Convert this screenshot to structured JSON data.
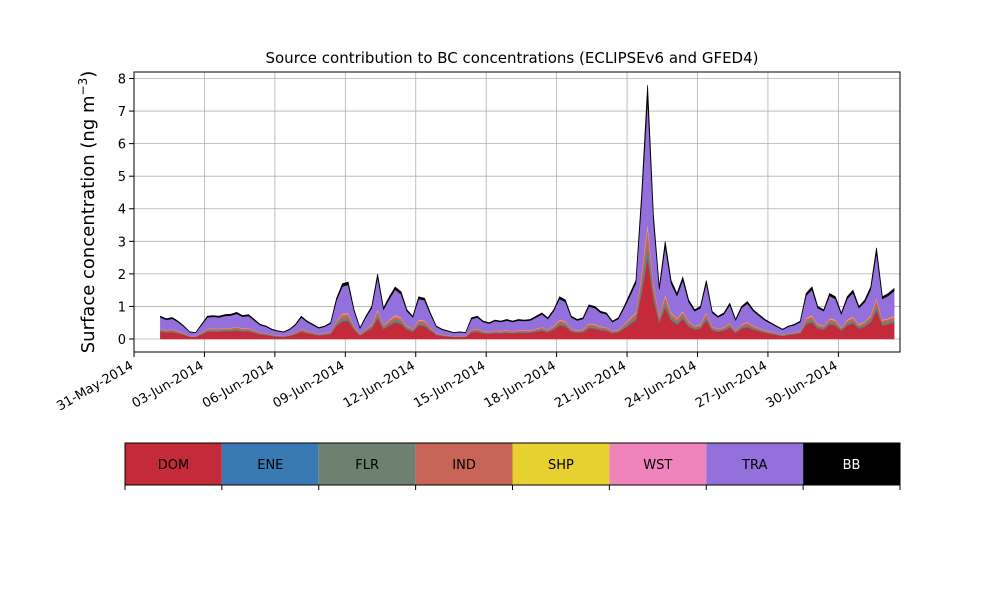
{
  "chart_data": {
    "type": "area",
    "title": "Source contribution to BC concentrations (ECLIPSEv6 and GFED4)",
    "ylabel_main": "Surface concentration (ng m",
    "ylabel_sup": "−3",
    "ylabel_close": ")",
    "xlabel": "",
    "x_start": "2014-05-31",
    "xlim": [
      "2014-05-31T00:00",
      "2014-07-02T15:00"
    ],
    "ylim": [
      -0.4,
      8.2
    ],
    "grid": true,
    "x_tick_dates": [
      "2014-05-31",
      "2014-06-03",
      "2014-06-06",
      "2014-06-09",
      "2014-06-12",
      "2014-06-15",
      "2014-06-18",
      "2014-06-21",
      "2014-06-24",
      "2014-06-27",
      "2014-06-30"
    ],
    "x_tick_labels": [
      "31-May-2014",
      "03-Jun-2014",
      "06-Jun-2014",
      "09-Jun-2014",
      "12-Jun-2014",
      "15-Jun-2014",
      "18-Jun-2014",
      "21-Jun-2014",
      "24-Jun-2014",
      "27-Jun-2014",
      "30-Jun-2014"
    ],
    "y_ticks": [
      0,
      1,
      2,
      3,
      4,
      5,
      6,
      7,
      8
    ],
    "y_tick_labels": [
      "0",
      "1",
      "2",
      "3",
      "4",
      "5",
      "6",
      "7",
      "8"
    ],
    "total_points": [
      [
        "2014-06-01T03:00",
        0.7
      ],
      [
        "2014-06-01T09:00",
        0.62
      ],
      [
        "2014-06-01T15:00",
        0.66
      ],
      [
        "2014-06-01T21:00",
        0.55
      ],
      [
        "2014-06-02T03:00",
        0.4
      ],
      [
        "2014-06-02T09:00",
        0.22
      ],
      [
        "2014-06-02T15:00",
        0.2
      ],
      [
        "2014-06-02T21:00",
        0.45
      ],
      [
        "2014-06-03T03:00",
        0.7
      ],
      [
        "2014-06-03T09:00",
        0.72
      ],
      [
        "2014-06-03T15:00",
        0.7
      ],
      [
        "2014-06-03T21:00",
        0.75
      ],
      [
        "2014-06-04T03:00",
        0.76
      ],
      [
        "2014-06-04T09:00",
        0.82
      ],
      [
        "2014-06-04T15:00",
        0.72
      ],
      [
        "2014-06-04T21:00",
        0.75
      ],
      [
        "2014-06-05T03:00",
        0.6
      ],
      [
        "2014-06-05T09:00",
        0.45
      ],
      [
        "2014-06-05T15:00",
        0.4
      ],
      [
        "2014-06-05T21:00",
        0.3
      ],
      [
        "2014-06-06T03:00",
        0.25
      ],
      [
        "2014-06-06T09:00",
        0.22
      ],
      [
        "2014-06-06T15:00",
        0.3
      ],
      [
        "2014-06-06T21:00",
        0.45
      ],
      [
        "2014-06-07T03:00",
        0.7
      ],
      [
        "2014-06-07T09:00",
        0.55
      ],
      [
        "2014-06-07T15:00",
        0.45
      ],
      [
        "2014-06-07T21:00",
        0.35
      ],
      [
        "2014-06-08T03:00",
        0.4
      ],
      [
        "2014-06-08T09:00",
        0.5
      ],
      [
        "2014-06-08T15:00",
        1.25
      ],
      [
        "2014-06-08T21:00",
        1.7
      ],
      [
        "2014-06-09T03:00",
        1.75
      ],
      [
        "2014-06-09T09:00",
        0.9
      ],
      [
        "2014-06-09T15:00",
        0.35
      ],
      [
        "2014-06-09T21:00",
        0.7
      ],
      [
        "2014-06-10T03:00",
        1.0
      ],
      [
        "2014-06-10T09:00",
        2.0
      ],
      [
        "2014-06-10T15:00",
        0.95
      ],
      [
        "2014-06-10T21:00",
        1.3
      ],
      [
        "2014-06-11T03:00",
        1.6
      ],
      [
        "2014-06-11T09:00",
        1.45
      ],
      [
        "2014-06-11T15:00",
        0.9
      ],
      [
        "2014-06-11T21:00",
        0.7
      ],
      [
        "2014-06-12T03:00",
        1.3
      ],
      [
        "2014-06-12T09:00",
        1.25
      ],
      [
        "2014-06-12T15:00",
        0.8
      ],
      [
        "2014-06-12T21:00",
        0.4
      ],
      [
        "2014-06-13T03:00",
        0.3
      ],
      [
        "2014-06-13T09:00",
        0.25
      ],
      [
        "2014-06-13T15:00",
        0.2
      ],
      [
        "2014-06-13T21:00",
        0.22
      ],
      [
        "2014-06-14T03:00",
        0.2
      ],
      [
        "2014-06-14T09:00",
        0.65
      ],
      [
        "2014-06-14T15:00",
        0.7
      ],
      [
        "2014-06-14T21:00",
        0.55
      ],
      [
        "2014-06-15T03:00",
        0.5
      ],
      [
        "2014-06-15T09:00",
        0.58
      ],
      [
        "2014-06-15T15:00",
        0.55
      ],
      [
        "2014-06-15T21:00",
        0.6
      ],
      [
        "2014-06-16T03:00",
        0.55
      ],
      [
        "2014-06-16T09:00",
        0.6
      ],
      [
        "2014-06-16T15:00",
        0.58
      ],
      [
        "2014-06-16T21:00",
        0.6
      ],
      [
        "2014-06-17T03:00",
        0.7
      ],
      [
        "2014-06-17T09:00",
        0.8
      ],
      [
        "2014-06-17T15:00",
        0.65
      ],
      [
        "2014-06-17T21:00",
        0.9
      ],
      [
        "2014-06-18T03:00",
        1.3
      ],
      [
        "2014-06-18T09:00",
        1.2
      ],
      [
        "2014-06-18T15:00",
        0.7
      ],
      [
        "2014-06-18T21:00",
        0.6
      ],
      [
        "2014-06-19T03:00",
        0.65
      ],
      [
        "2014-06-19T09:00",
        1.05
      ],
      [
        "2014-06-19T15:00",
        1.0
      ],
      [
        "2014-06-19T21:00",
        0.85
      ],
      [
        "2014-06-20T03:00",
        0.8
      ],
      [
        "2014-06-20T09:00",
        0.55
      ],
      [
        "2014-06-20T15:00",
        0.65
      ],
      [
        "2014-06-20T21:00",
        1.0
      ],
      [
        "2014-06-21T03:00",
        1.4
      ],
      [
        "2014-06-21T09:00",
        1.8
      ],
      [
        "2014-06-21T15:00",
        4.5
      ],
      [
        "2014-06-21T21:00",
        7.8
      ],
      [
        "2014-06-22T03:00",
        3.8
      ],
      [
        "2014-06-22T09:00",
        1.6
      ],
      [
        "2014-06-22T15:00",
        3.0
      ],
      [
        "2014-06-22T21:00",
        1.8
      ],
      [
        "2014-06-23T03:00",
        1.4
      ],
      [
        "2014-06-23T09:00",
        1.9
      ],
      [
        "2014-06-23T15:00",
        1.2
      ],
      [
        "2014-06-23T21:00",
        0.9
      ],
      [
        "2014-06-24T03:00",
        1.0
      ],
      [
        "2014-06-24T09:00",
        1.8
      ],
      [
        "2014-06-24T15:00",
        0.85
      ],
      [
        "2014-06-24T21:00",
        0.7
      ],
      [
        "2014-06-25T03:00",
        0.8
      ],
      [
        "2014-06-25T09:00",
        1.1
      ],
      [
        "2014-06-25T15:00",
        0.6
      ],
      [
        "2014-06-25T21:00",
        1.0
      ],
      [
        "2014-06-26T03:00",
        1.15
      ],
      [
        "2014-06-26T09:00",
        0.9
      ],
      [
        "2014-06-26T15:00",
        0.75
      ],
      [
        "2014-06-26T21:00",
        0.6
      ],
      [
        "2014-06-27T03:00",
        0.5
      ],
      [
        "2014-06-27T09:00",
        0.4
      ],
      [
        "2014-06-27T15:00",
        0.3
      ],
      [
        "2014-06-27T21:00",
        0.4
      ],
      [
        "2014-06-28T03:00",
        0.45
      ],
      [
        "2014-06-28T09:00",
        0.55
      ],
      [
        "2014-06-28T15:00",
        1.4
      ],
      [
        "2014-06-28T21:00",
        1.6
      ],
      [
        "2014-06-29T03:00",
        1.0
      ],
      [
        "2014-06-29T09:00",
        0.9
      ],
      [
        "2014-06-29T15:00",
        1.4
      ],
      [
        "2014-06-29T21:00",
        1.3
      ],
      [
        "2014-06-30T03:00",
        0.8
      ],
      [
        "2014-06-30T09:00",
        1.3
      ],
      [
        "2014-06-30T15:00",
        1.5
      ],
      [
        "2014-06-30T21:00",
        1.0
      ],
      [
        "2014-07-01T03:00",
        1.2
      ],
      [
        "2014-07-01T09:00",
        1.6
      ],
      [
        "2014-07-01T15:00",
        2.8
      ],
      [
        "2014-07-01T21:00",
        1.3
      ],
      [
        "2014-07-02T03:00",
        1.4
      ],
      [
        "2014-07-02T09:00",
        1.55
      ]
    ],
    "series": [
      {
        "name": "DOM",
        "color": "#c52a3a",
        "approx_share": 0.32
      },
      {
        "name": "ENE",
        "color": "#3a7ab3",
        "approx_share": 0.01
      },
      {
        "name": "FLR",
        "color": "#6e8070",
        "approx_share": 0.05
      },
      {
        "name": "IND",
        "color": "#c96558",
        "approx_share": 0.06
      },
      {
        "name": "SHP",
        "color": "#e6d130",
        "approx_share": 0.01
      },
      {
        "name": "WST",
        "color": "#ef83bc",
        "approx_share": 0.01
      },
      {
        "name": "TRA",
        "color": "#9370db",
        "approx_share": 0.49
      },
      {
        "name": "BB",
        "color": "#000000",
        "approx_share": 0.05
      }
    ],
    "legend_position": "bottom-colorbar"
  }
}
